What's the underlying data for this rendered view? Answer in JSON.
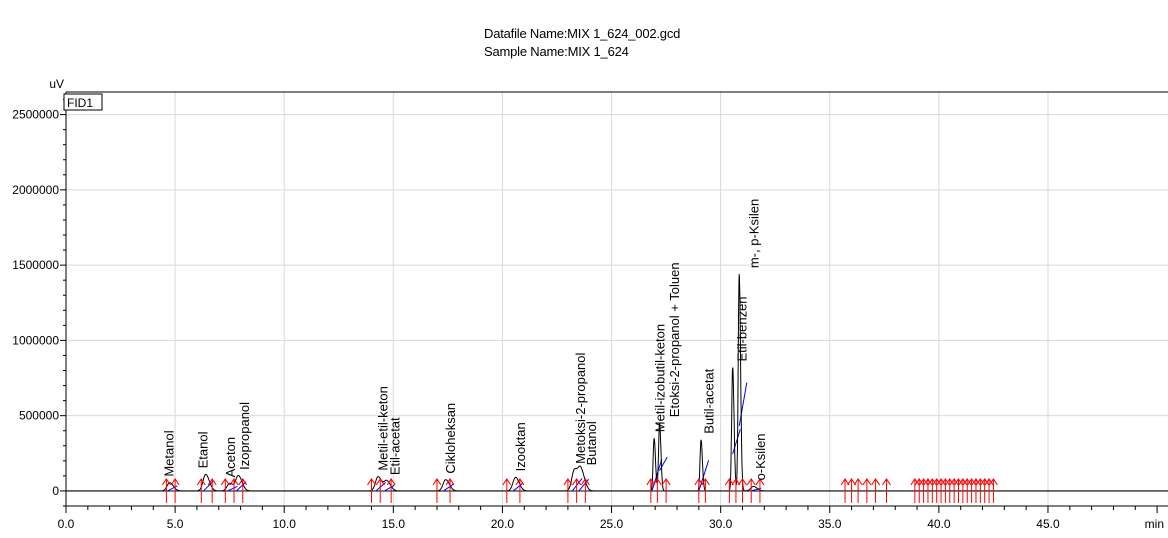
{
  "header": {
    "datafile": "Datafile Name:MIX 1_624_002.gcd",
    "sample": "Sample Name:MIX 1_624"
  },
  "chart_data": {
    "type": "line",
    "y_unit": "uV",
    "x_unit": "min",
    "detector": "FID1",
    "xlim": [
      0.0,
      50.5
    ],
    "ylim": [
      -100000,
      2650000
    ],
    "x_ticks": [
      "0.0",
      "5.0",
      "10.0",
      "15.0",
      "20.0",
      "25.0",
      "30.0",
      "35.0",
      "40.0",
      "45.0"
    ],
    "y_ticks": [
      "0",
      "500000",
      "1000000",
      "1500000",
      "2000000",
      "2500000"
    ],
    "grid": true,
    "line_color": "#000000",
    "marker_color": "#ff0000",
    "baseline_color": "#0000ff",
    "peaks": [
      {
        "name": "Metanol",
        "rt": 4.75,
        "height": 55000
      },
      {
        "name": "Etanol",
        "rt": 6.4,
        "height": 110000
      },
      {
        "name": "Aceton",
        "rt": 7.5,
        "height": 50000
      },
      {
        "name": "Izopropanol",
        "rt": 7.9,
        "height": 100000
      },
      {
        "name": "Metil-etil-keton",
        "rt": 14.3,
        "height": 95000
      },
      {
        "name": "Etil-acetat",
        "rt": 14.7,
        "height": 65000
      },
      {
        "name": "Cikloheksan",
        "rt": 17.4,
        "height": 75000
      },
      {
        "name": "Izooktan",
        "rt": 20.6,
        "height": 90000
      },
      {
        "name": "Metoksi-2-propanol",
        "rt": 23.3,
        "height": 140000
      },
      {
        "name": "Butanol",
        "rt": 23.6,
        "height": 130000
      },
      {
        "name": "Metil-izobutil-keton",
        "rt": 26.95,
        "height": 350000
      },
      {
        "name": "Etoksi-2-propanol + Toluen",
        "rt": 27.2,
        "height": 450000
      },
      {
        "name": "Butil-acetat",
        "rt": 29.1,
        "height": 340000
      },
      {
        "name": "Etil-benzen",
        "rt": 30.55,
        "height": 820000
      },
      {
        "name": "m-, p-Ksilen",
        "rt": 30.85,
        "height": 1440000
      },
      {
        "name": "o-Ksilen",
        "rt": 31.5,
        "height": 30000
      }
    ],
    "integration_marks": [
      4.6,
      5.0,
      6.2,
      6.7,
      7.3,
      7.7,
      8.1,
      14.0,
      14.4,
      14.9,
      17.0,
      17.6,
      20.2,
      20.8,
      23.0,
      23.4,
      23.8,
      26.8,
      27.1,
      27.5,
      29.0,
      29.3,
      30.4,
      30.7,
      31.0,
      31.4,
      31.8,
      35.7,
      36.0,
      36.3,
      36.7,
      37.1,
      37.6,
      38.9,
      39.1,
      39.3,
      39.5,
      39.7,
      39.9,
      40.1,
      40.3,
      40.5,
      40.7,
      40.9,
      41.1,
      41.3,
      41.5,
      41.7,
      41.9,
      42.1,
      42.3,
      42.5
    ],
    "labels_placed": [
      {
        "name": "Metanol",
        "rt": 4.75
      },
      {
        "name": "Etanol",
        "rt": 6.3
      },
      {
        "name": "Aceton",
        "rt": 7.55
      },
      {
        "name": "Izopropanol",
        "rt": 8.2
      },
      {
        "name": "Metil-etil-keton",
        "rt": 14.55
      },
      {
        "name": "Etil-acetat",
        "rt": 15.1
      },
      {
        "name": "Cikloheksan",
        "rt": 17.65
      },
      {
        "name": "Izooktan",
        "rt": 20.85
      },
      {
        "name": "Metoksi-2-propanol",
        "rt": 23.6
      },
      {
        "name": "Butanol",
        "rt": 24.1
      },
      {
        "name": "Metil-izobutil-keton",
        "rt": 27.25
      },
      {
        "name": "Etoksi-2-propanol + Toluen",
        "rt": 27.9
      },
      {
        "name": "Butil-acetat",
        "rt": 29.5
      },
      {
        "name": "Etil-benzen",
        "rt": 31.0
      },
      {
        "name": "m-, p-Ksilen",
        "rt": 31.55
      },
      {
        "name": "o-Ksilen",
        "rt": 31.85
      }
    ]
  }
}
